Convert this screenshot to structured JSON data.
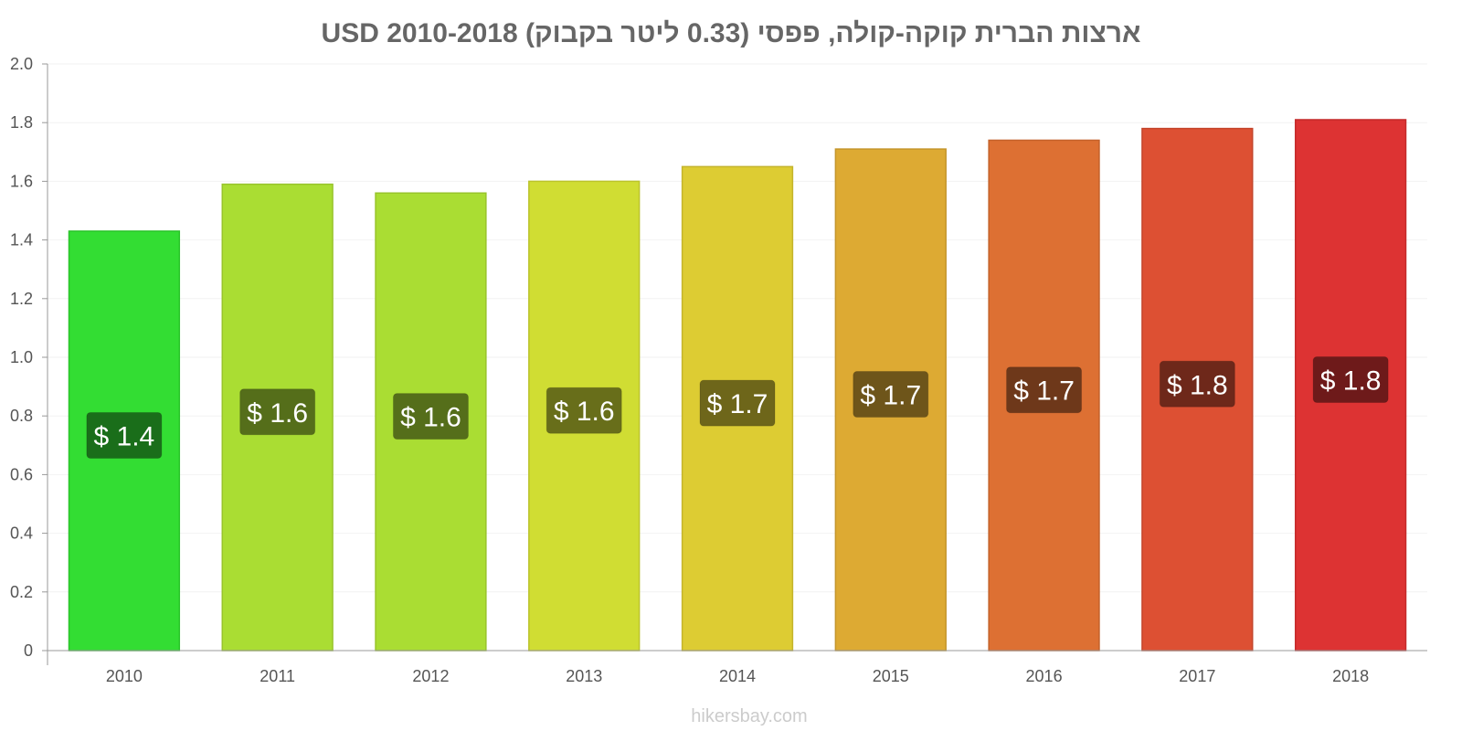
{
  "chart_data": {
    "type": "bar",
    "title": "ארצות הברית קוקה-קולה, פפסי (0.33 ליטר בקבוק) USD 2010-2018",
    "xlabel": "",
    "ylabel": "",
    "ylim": [
      0,
      2.0
    ],
    "yticks": [
      "0",
      "0.2",
      "0.4",
      "0.6",
      "0.8",
      "1.0",
      "1.2",
      "1.4",
      "1.6",
      "1.8",
      "2.0"
    ],
    "grid": true,
    "legend": "none",
    "categories": [
      "2010",
      "2011",
      "2012",
      "2013",
      "2014",
      "2015",
      "2016",
      "2017",
      "2018"
    ],
    "values": [
      1.43,
      1.59,
      1.56,
      1.6,
      1.65,
      1.71,
      1.74,
      1.78,
      1.81
    ],
    "data_labels": [
      "$ 1.4",
      "$ 1.6",
      "$ 1.6",
      "$ 1.6",
      "$ 1.7",
      "$ 1.7",
      "$ 1.7",
      "$ 1.8",
      "$ 1.8"
    ],
    "bar_colors": [
      "#33dd33",
      "#aadd33",
      "#aadd33",
      "#d0dd33",
      "#ddcc33",
      "#ddaa33",
      "#dd7033",
      "#dd5033",
      "#dd3333"
    ],
    "bar_stroke_colors": [
      "#2bc42b",
      "#98c42b",
      "#98c42b",
      "#bcc42b",
      "#c4b42b",
      "#c4952b",
      "#c4622b",
      "#c4452b",
      "#c42b2b"
    ],
    "label_box_colors": [
      "#1a6e1a",
      "#556e1a",
      "#556e1a",
      "#686e1a",
      "#6e661a",
      "#6e551a",
      "#6e381a",
      "#6e281a",
      "#6e1a1a"
    ]
  },
  "watermark": "hikersbay.com"
}
